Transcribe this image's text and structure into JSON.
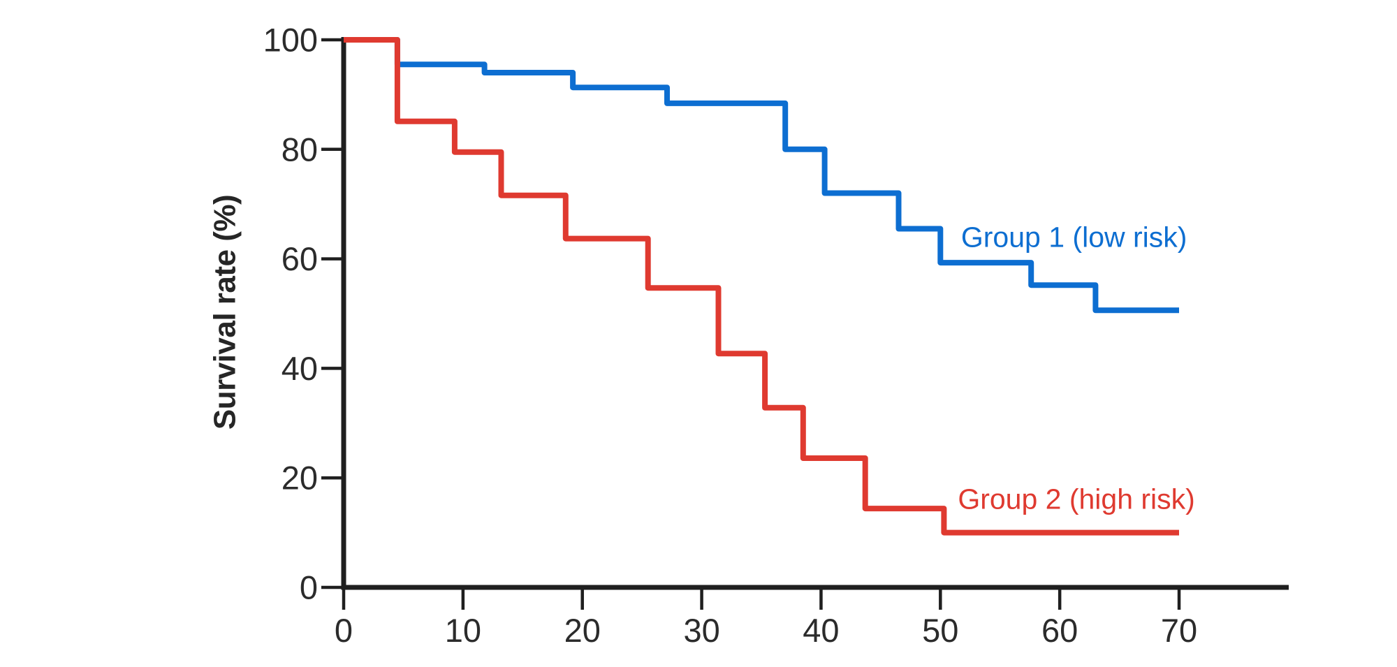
{
  "figure": {
    "background": "#ffffff",
    "description": "Kaplan-Meier style survival step chart with two groups"
  },
  "chart_data": {
    "type": "line",
    "variant": "kaplan-meier-step",
    "title": "",
    "xlabel": "",
    "ylabel": "Survival rate (%)",
    "x_ticks": [
      0,
      10,
      20,
      30,
      40,
      50,
      60,
      70
    ],
    "y_ticks": [
      0,
      20,
      40,
      60,
      80,
      100
    ],
    "xlim": [
      0,
      79
    ],
    "ylim": [
      0,
      100
    ],
    "grid": false,
    "legend_position": "inline-right-of-curves",
    "axis_color": "#1f1f1f",
    "tick_label_color": "#2b2b2b",
    "series": [
      {
        "name": "Group 1 (low risk)",
        "risk": "low",
        "color": "#0d6ed1",
        "label_pos": {
          "x": 61.2,
          "y": 64
        },
        "steps": [
          [
            0,
            100
          ],
          [
            4.5,
            95.5
          ],
          [
            11.8,
            94
          ],
          [
            19.2,
            91.3
          ],
          [
            27.1,
            88.4
          ],
          [
            37,
            80
          ],
          [
            40.3,
            72
          ],
          [
            46.5,
            65.5
          ],
          [
            50,
            59.3
          ],
          [
            57.6,
            55.2
          ],
          [
            63,
            50.6
          ],
          [
            70,
            50.6
          ]
        ]
      },
      {
        "name": "Group 2 (high risk)",
        "risk": "high",
        "color": "#df3a30",
        "label_pos": {
          "x": 61.4,
          "y": 16.2
        },
        "steps": [
          [
            0,
            100
          ],
          [
            4.5,
            85.1
          ],
          [
            9.3,
            79.5
          ],
          [
            13.2,
            71.6
          ],
          [
            18.6,
            63.7
          ],
          [
            25.5,
            54.7
          ],
          [
            31.4,
            42.7
          ],
          [
            35.3,
            32.8
          ],
          [
            38.5,
            23.6
          ],
          [
            43.7,
            14.4
          ],
          [
            50.3,
            10
          ],
          [
            70,
            10
          ]
        ]
      }
    ]
  }
}
